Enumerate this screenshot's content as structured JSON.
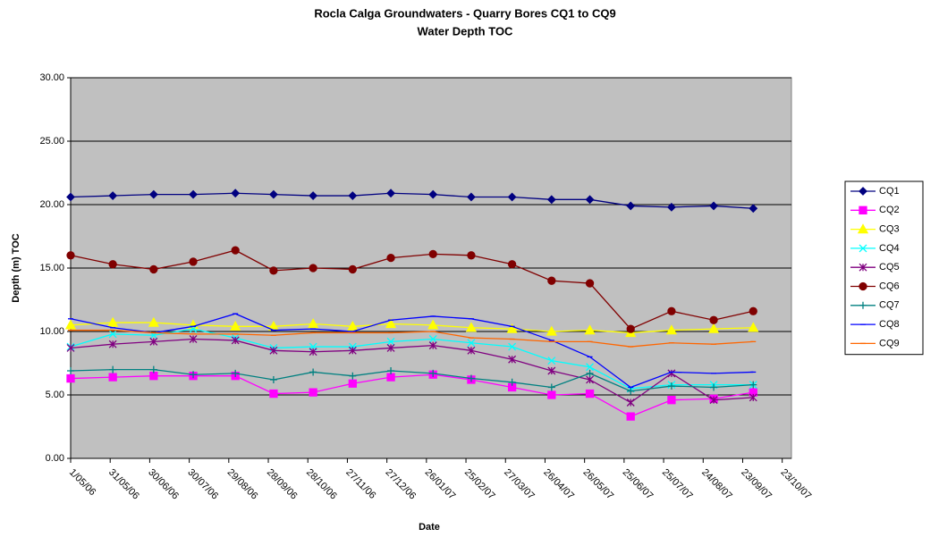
{
  "chart_data": {
    "type": "line",
    "title": "Rocla Calga Groundwaters - Quarry Bores CQ1 to CQ9",
    "subtitle": "Water Depth TOC",
    "x_label": "Date",
    "y_label": "Depth (m) TOC",
    "x": [
      "2006-05-01",
      "2006-06-02",
      "2006-07-03",
      "2006-08-02",
      "2006-09-03",
      "2006-10-02",
      "2006-11-01",
      "2006-12-01",
      "2006-12-30",
      "2007-01-31",
      "2007-03-01",
      "2007-04-01",
      "2007-05-01",
      "2007-05-30",
      "2007-06-30",
      "2007-07-31",
      "2007-09-01",
      "2007-10-01"
    ],
    "series": [
      {
        "name": "CQ1",
        "color": "#000080",
        "marker": "diamond",
        "values": [
          20.6,
          20.7,
          20.8,
          20.8,
          20.9,
          20.8,
          20.7,
          20.7,
          20.9,
          20.8,
          20.6,
          20.6,
          20.4,
          20.4,
          19.9,
          19.8,
          19.9,
          19.7
        ]
      },
      {
        "name": "CQ2",
        "color": "#FF00FF",
        "marker": "square",
        "values": [
          6.3,
          6.4,
          6.5,
          6.5,
          6.5,
          5.1,
          5.2,
          5.9,
          6.4,
          6.6,
          6.2,
          5.6,
          5.0,
          5.1,
          3.3,
          4.6,
          4.7,
          5.2
        ]
      },
      {
        "name": "CQ3",
        "color": "#FFFF00",
        "marker": "triangle",
        "values": [
          10.5,
          10.7,
          10.7,
          10.5,
          10.4,
          10.4,
          10.6,
          10.4,
          10.6,
          10.5,
          10.3,
          10.2,
          10.0,
          10.1,
          9.9,
          10.1,
          10.2,
          10.3
        ]
      },
      {
        "name": "CQ4",
        "color": "#00FFFF",
        "marker": "x",
        "values": [
          8.8,
          9.8,
          9.7,
          10.2,
          9.5,
          8.7,
          8.8,
          8.8,
          9.2,
          9.4,
          9.1,
          8.8,
          7.7,
          7.2,
          5.5,
          5.8,
          5.8,
          5.8
        ]
      },
      {
        "name": "CQ5",
        "color": "#800080",
        "marker": "asterisk",
        "values": [
          8.7,
          9.0,
          9.2,
          9.4,
          9.3,
          8.5,
          8.4,
          8.5,
          8.7,
          8.9,
          8.5,
          7.8,
          6.9,
          6.2,
          4.4,
          6.7,
          4.6,
          4.8
        ]
      },
      {
        "name": "CQ6",
        "color": "#800000",
        "marker": "circle",
        "values": [
          16.0,
          15.3,
          14.9,
          15.5,
          16.4,
          14.8,
          15.0,
          14.9,
          15.8,
          16.1,
          16.0,
          15.3,
          14.0,
          13.8,
          10.2,
          11.6,
          10.9,
          11.6
        ]
      },
      {
        "name": "CQ7",
        "color": "#008080",
        "marker": "plus",
        "values": [
          6.9,
          7.0,
          7.0,
          6.6,
          6.7,
          6.2,
          6.8,
          6.5,
          6.9,
          6.7,
          6.3,
          6.0,
          5.6,
          6.7,
          5.3,
          5.7,
          5.6,
          5.8
        ]
      },
      {
        "name": "CQ8",
        "color": "#0000FF",
        "marker": "dash",
        "values": [
          11.0,
          10.3,
          9.9,
          10.4,
          11.4,
          10.1,
          10.2,
          10.0,
          10.9,
          11.2,
          11.0,
          10.4,
          9.3,
          8.0,
          5.6,
          6.8,
          6.7,
          6.8
        ]
      },
      {
        "name": "CQ9",
        "color": "#FF6600",
        "marker": "dash",
        "values": [
          10.1,
          10.1,
          9.9,
          9.8,
          9.8,
          9.7,
          9.9,
          9.9,
          9.9,
          10.0,
          9.5,
          9.4,
          9.2,
          9.2,
          8.8,
          9.1,
          9.0,
          9.2
        ]
      }
    ],
    "xlim": [
      "2006-05-01",
      "2007-10-30"
    ],
    "xticks": [
      {
        "value": "2006-05-01",
        "label": "1/05/06"
      },
      {
        "value": "2006-05-31",
        "label": "31/05/06"
      },
      {
        "value": "2006-06-30",
        "label": "30/06/06"
      },
      {
        "value": "2006-07-30",
        "label": "30/07/06"
      },
      {
        "value": "2006-08-29",
        "label": "29/08/06"
      },
      {
        "value": "2006-09-28",
        "label": "28/09/06"
      },
      {
        "value": "2006-10-28",
        "label": "28/10/06"
      },
      {
        "value": "2006-11-27",
        "label": "27/11/06"
      },
      {
        "value": "2006-12-27",
        "label": "27/12/06"
      },
      {
        "value": "2007-01-26",
        "label": "26/01/07"
      },
      {
        "value": "2007-02-25",
        "label": "25/02/07"
      },
      {
        "value": "2007-03-27",
        "label": "27/03/07"
      },
      {
        "value": "2007-04-26",
        "label": "26/04/07"
      },
      {
        "value": "2007-05-26",
        "label": "26/05/07"
      },
      {
        "value": "2007-06-25",
        "label": "25/06/07"
      },
      {
        "value": "2007-07-25",
        "label": "25/07/07"
      },
      {
        "value": "2007-08-24",
        "label": "24/08/07"
      },
      {
        "value": "2007-09-23",
        "label": "23/09/07"
      },
      {
        "value": "2007-10-23",
        "label": "23/10/07"
      }
    ],
    "ylim": [
      0,
      30
    ],
    "yticks": [
      {
        "value": 0,
        "label": "0.00"
      },
      {
        "value": 5,
        "label": "5.00"
      },
      {
        "value": 10,
        "label": "10.00"
      },
      {
        "value": 15,
        "label": "15.00"
      },
      {
        "value": 20,
        "label": "20.00"
      },
      {
        "value": 25,
        "label": "25.00"
      },
      {
        "value": 30,
        "label": "30.00"
      }
    ],
    "grid": true,
    "plot_background": "#C0C0C0",
    "legend": "right"
  }
}
